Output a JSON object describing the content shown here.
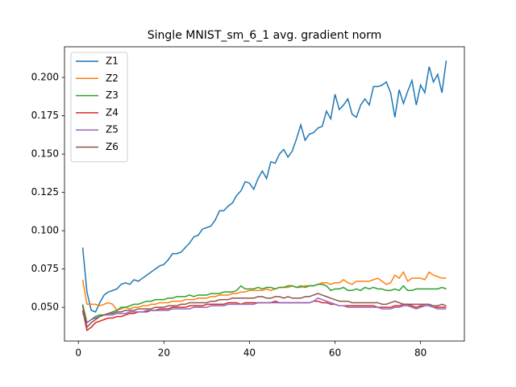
{
  "chart_data": {
    "type": "line",
    "title": "Single MNIST_sm_6_1 avg. gradient norm",
    "x": [
      1,
      2,
      3,
      4,
      5,
      6,
      7,
      8,
      9,
      10,
      11,
      12,
      13,
      14,
      15,
      16,
      17,
      18,
      19,
      20,
      21,
      22,
      23,
      24,
      25,
      26,
      27,
      28,
      29,
      30,
      31,
      32,
      33,
      34,
      35,
      36,
      37,
      38,
      39,
      40,
      41,
      42,
      43,
      44,
      45,
      46,
      47,
      48,
      49,
      50,
      51,
      52,
      53,
      54,
      55,
      56,
      57,
      58,
      59,
      60,
      61,
      62,
      63,
      64,
      65,
      66,
      67,
      68,
      69,
      70,
      71,
      72,
      73,
      74,
      75,
      76,
      77,
      78,
      79,
      80,
      81,
      82,
      83,
      84,
      85,
      86
    ],
    "series": [
      {
        "name": "Z1",
        "color": "#1f77b4",
        "values": [
          0.089,
          0.06,
          0.048,
          0.047,
          0.053,
          0.058,
          0.06,
          0.061,
          0.062,
          0.065,
          0.066,
          0.065,
          0.068,
          0.067,
          0.069,
          0.071,
          0.073,
          0.075,
          0.077,
          0.078,
          0.081,
          0.085,
          0.085,
          0.086,
          0.089,
          0.092,
          0.096,
          0.097,
          0.101,
          0.102,
          0.103,
          0.107,
          0.113,
          0.113,
          0.116,
          0.118,
          0.123,
          0.126,
          0.132,
          0.131,
          0.127,
          0.134,
          0.139,
          0.134,
          0.145,
          0.144,
          0.15,
          0.153,
          0.148,
          0.152,
          0.16,
          0.169,
          0.159,
          0.163,
          0.164,
          0.167,
          0.168,
          0.178,
          0.173,
          0.189,
          0.179,
          0.182,
          0.186,
          0.176,
          0.174,
          0.182,
          0.186,
          0.182,
          0.194,
          0.194,
          0.195,
          0.197,
          0.19,
          0.174,
          0.192,
          0.183,
          0.191,
          0.198,
          0.182,
          0.195,
          0.19,
          0.207,
          0.197,
          0.202,
          0.19,
          0.211
        ]
      },
      {
        "name": "Z2",
        "color": "#ff7f0e",
        "values": [
          0.068,
          0.052,
          0.052,
          0.052,
          0.051,
          0.052,
          0.053,
          0.052,
          0.048,
          0.049,
          0.05,
          0.049,
          0.05,
          0.05,
          0.051,
          0.051,
          0.052,
          0.052,
          0.053,
          0.053,
          0.053,
          0.054,
          0.054,
          0.054,
          0.055,
          0.055,
          0.055,
          0.056,
          0.056,
          0.056,
          0.057,
          0.057,
          0.058,
          0.058,
          0.058,
          0.059,
          0.059,
          0.06,
          0.06,
          0.061,
          0.061,
          0.061,
          0.061,
          0.062,
          0.061,
          0.062,
          0.063,
          0.063,
          0.063,
          0.064,
          0.063,
          0.063,
          0.064,
          0.064,
          0.064,
          0.065,
          0.066,
          0.066,
          0.065,
          0.066,
          0.066,
          0.068,
          0.066,
          0.065,
          0.067,
          0.067,
          0.067,
          0.067,
          0.068,
          0.069,
          0.067,
          0.065,
          0.066,
          0.071,
          0.069,
          0.073,
          0.067,
          0.069,
          0.069,
          0.069,
          0.068,
          0.073,
          0.071,
          0.07,
          0.069,
          0.069
        ]
      },
      {
        "name": "Z3",
        "color": "#2ca02c",
        "values": [
          0.052,
          0.04,
          0.042,
          0.044,
          0.045,
          0.045,
          0.046,
          0.047,
          0.048,
          0.05,
          0.05,
          0.051,
          0.052,
          0.052,
          0.053,
          0.054,
          0.054,
          0.055,
          0.055,
          0.055,
          0.056,
          0.056,
          0.057,
          0.057,
          0.057,
          0.058,
          0.057,
          0.058,
          0.058,
          0.058,
          0.059,
          0.059,
          0.059,
          0.06,
          0.06,
          0.06,
          0.061,
          0.064,
          0.062,
          0.062,
          0.062,
          0.063,
          0.062,
          0.063,
          0.063,
          0.062,
          0.063,
          0.063,
          0.064,
          0.064,
          0.063,
          0.064,
          0.063,
          0.064,
          0.064,
          0.065,
          0.065,
          0.064,
          0.061,
          0.062,
          0.062,
          0.063,
          0.061,
          0.061,
          0.062,
          0.061,
          0.063,
          0.062,
          0.063,
          0.062,
          0.062,
          0.061,
          0.061,
          0.062,
          0.061,
          0.064,
          0.061,
          0.061,
          0.062,
          0.062,
          0.062,
          0.062,
          0.062,
          0.062,
          0.063,
          0.062
        ]
      },
      {
        "name": "Z4",
        "color": "#d62728",
        "values": [
          0.048,
          0.035,
          0.037,
          0.04,
          0.041,
          0.042,
          0.043,
          0.043,
          0.044,
          0.044,
          0.045,
          0.046,
          0.046,
          0.047,
          0.047,
          0.047,
          0.048,
          0.048,
          0.049,
          0.049,
          0.049,
          0.05,
          0.05,
          0.05,
          0.05,
          0.051,
          0.051,
          0.051,
          0.051,
          0.052,
          0.052,
          0.052,
          0.052,
          0.052,
          0.053,
          0.053,
          0.053,
          0.052,
          0.053,
          0.053,
          0.053,
          0.053,
          0.053,
          0.053,
          0.053,
          0.054,
          0.053,
          0.053,
          0.053,
          0.053,
          0.053,
          0.053,
          0.053,
          0.053,
          0.054,
          0.054,
          0.053,
          0.053,
          0.052,
          0.052,
          0.051,
          0.051,
          0.051,
          0.051,
          0.051,
          0.051,
          0.051,
          0.051,
          0.051,
          0.05,
          0.05,
          0.05,
          0.05,
          0.051,
          0.051,
          0.052,
          0.052,
          0.051,
          0.05,
          0.051,
          0.051,
          0.051,
          0.05,
          0.05,
          0.05,
          0.05
        ]
      },
      {
        "name": "Z5",
        "color": "#9467bd",
        "values": [
          0.046,
          0.04,
          0.042,
          0.043,
          0.044,
          0.045,
          0.045,
          0.045,
          0.046,
          0.046,
          0.046,
          0.047,
          0.047,
          0.047,
          0.047,
          0.048,
          0.048,
          0.048,
          0.048,
          0.048,
          0.048,
          0.049,
          0.049,
          0.049,
          0.049,
          0.049,
          0.05,
          0.05,
          0.05,
          0.05,
          0.051,
          0.051,
          0.051,
          0.051,
          0.052,
          0.052,
          0.052,
          0.052,
          0.052,
          0.052,
          0.052,
          0.053,
          0.053,
          0.053,
          0.053,
          0.053,
          0.053,
          0.053,
          0.053,
          0.053,
          0.053,
          0.053,
          0.053,
          0.053,
          0.054,
          0.056,
          0.055,
          0.054,
          0.053,
          0.052,
          0.051,
          0.051,
          0.05,
          0.05,
          0.05,
          0.05,
          0.05,
          0.05,
          0.05,
          0.05,
          0.049,
          0.049,
          0.049,
          0.05,
          0.05,
          0.051,
          0.051,
          0.05,
          0.049,
          0.05,
          0.051,
          0.051,
          0.05,
          0.049,
          0.049,
          0.049
        ]
      },
      {
        "name": "Z6",
        "color": "#8c564b",
        "values": [
          0.051,
          0.037,
          0.04,
          0.042,
          0.044,
          0.045,
          0.046,
          0.046,
          0.047,
          0.047,
          0.048,
          0.048,
          0.048,
          0.049,
          0.049,
          0.049,
          0.049,
          0.05,
          0.05,
          0.05,
          0.051,
          0.051,
          0.051,
          0.052,
          0.052,
          0.053,
          0.053,
          0.053,
          0.053,
          0.053,
          0.054,
          0.054,
          0.055,
          0.055,
          0.055,
          0.056,
          0.056,
          0.056,
          0.056,
          0.056,
          0.056,
          0.057,
          0.057,
          0.056,
          0.056,
          0.057,
          0.057,
          0.056,
          0.057,
          0.056,
          0.056,
          0.056,
          0.057,
          0.057,
          0.058,
          0.059,
          0.058,
          0.057,
          0.056,
          0.055,
          0.054,
          0.054,
          0.054,
          0.053,
          0.053,
          0.053,
          0.053,
          0.053,
          0.053,
          0.053,
          0.052,
          0.052,
          0.053,
          0.054,
          0.053,
          0.052,
          0.052,
          0.052,
          0.052,
          0.052,
          0.052,
          0.052,
          0.051,
          0.051,
          0.052,
          0.051
        ]
      }
    ],
    "xlim": [
      -3.25,
      90.25
    ],
    "xticks": [
      0,
      20,
      40,
      60,
      80
    ],
    "ylim": [
      0.028,
      0.22
    ],
    "yticks": [
      {
        "value": 0.05,
        "label": "0.050"
      },
      {
        "value": 0.075,
        "label": "0.075"
      },
      {
        "value": 0.1,
        "label": "0.100"
      },
      {
        "value": 0.125,
        "label": "0.125"
      },
      {
        "value": 0.15,
        "label": "0.150"
      },
      {
        "value": 0.175,
        "label": "0.175"
      },
      {
        "value": 0.2,
        "label": "0.200"
      }
    ],
    "grid": false,
    "legend": "upper-left"
  }
}
